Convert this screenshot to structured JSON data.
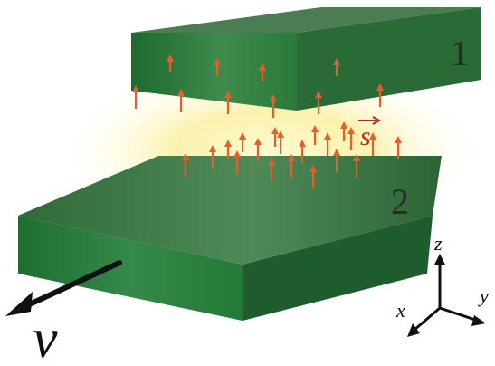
{
  "labels": {
    "slab_top": "1",
    "slab_bottom": "2",
    "poynting_vector": "s",
    "velocity": "v"
  },
  "axes": {
    "x": "x",
    "y": "y",
    "z": "z"
  },
  "colors": {
    "slab_top_face": "#3f7a4a",
    "slab_front_face": "#2a7a3c",
    "slab_side_face": "#1f5c2d",
    "arrow": "#f05a28",
    "glow": "#fbf3a8",
    "vector_label": "#b8261d",
    "ink": "#111111"
  }
}
